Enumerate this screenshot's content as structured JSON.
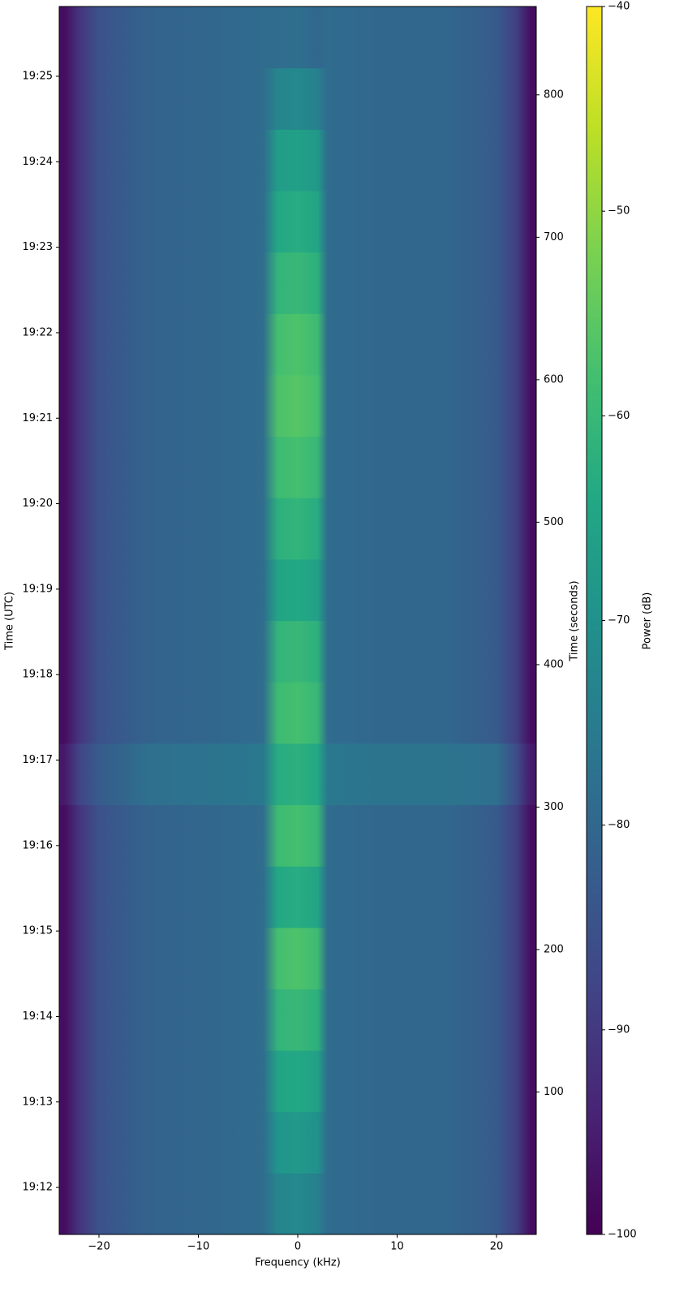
{
  "chart_data": {
    "type": "heatmap",
    "colormap": "viridis",
    "xlabel": "Frequency (kHz)",
    "ylabel": "Time (UTC)",
    "y2label": "Time (seconds)",
    "colorbar_label": "Power (dB)",
    "xlim": [
      -24,
      24
    ],
    "xticks": [
      {
        "value": -20,
        "label": "−20"
      },
      {
        "value": -10,
        "label": "−10"
      },
      0,
      10,
      20
    ],
    "ylim": [
      0,
      862
    ],
    "yticks": [
      {
        "value": 33,
        "label": "19:12"
      },
      {
        "value": 93,
        "label": "19:13"
      },
      {
        "value": 153,
        "label": "19:14"
      },
      {
        "value": 213,
        "label": "19:15"
      },
      {
        "value": 273,
        "label": "19:16"
      },
      {
        "value": 333,
        "label": "19:17"
      },
      {
        "value": 393,
        "label": "19:18"
      },
      {
        "value": 453,
        "label": "19:19"
      },
      {
        "value": 513,
        "label": "19:20"
      },
      {
        "value": 573,
        "label": "19:21"
      },
      {
        "value": 633,
        "label": "19:22"
      },
      {
        "value": 693,
        "label": "19:23"
      },
      {
        "value": 753,
        "label": "19:24"
      },
      {
        "value": 813,
        "label": "19:25"
      }
    ],
    "y2lim": [
      0,
      862
    ],
    "y2ticks": [
      100,
      200,
      300,
      400,
      500,
      600,
      700,
      800
    ],
    "clim": [
      -100,
      -40
    ],
    "cticks": [
      {
        "value": -100,
        "label": "−100"
      },
      {
        "value": -90,
        "label": "−90"
      },
      {
        "value": -80,
        "label": "−80"
      },
      {
        "value": -70,
        "label": "−70"
      },
      {
        "value": -60,
        "label": "−60"
      },
      {
        "value": -50,
        "label": "−50"
      },
      {
        "value": -40,
        "label": "−40"
      }
    ],
    "x": [
      -23.5,
      -22,
      -20,
      -15,
      -8,
      -3.5,
      -2,
      0,
      2,
      3,
      8,
      15,
      20,
      22,
      23.5
    ],
    "y": [
      21.5,
      64.6,
      107.7,
      150.8,
      193.9,
      237,
      280.1,
      323.2,
      366.3,
      409.4,
      452.5,
      495.6,
      538.7,
      581.8,
      624.9,
      668,
      711.1,
      754.2,
      797.3,
      840.4
    ],
    "z": [
      [
        -98,
        -91,
        -85,
        -81,
        -80,
        -79,
        -73,
        -72,
        -74,
        -79,
        -80,
        -80,
        -83,
        -89,
        -98
      ],
      [
        -98,
        -91,
        -85,
        -81,
        -80,
        -79,
        -69,
        -68,
        -70,
        -79,
        -80,
        -80,
        -83,
        -89,
        -98
      ],
      [
        -98,
        -91,
        -85,
        -81,
        -80,
        -79,
        -65,
        -64,
        -66,
        -79,
        -80,
        -80,
        -83,
        -89,
        -98
      ],
      [
        -98,
        -91,
        -85,
        -81,
        -80,
        -79,
        -61,
        -60,
        -62,
        -79,
        -80,
        -80,
        -83,
        -89,
        -98
      ],
      [
        -98,
        -91,
        -85,
        -81,
        -80,
        -79,
        -58,
        -57,
        -59,
        -79,
        -80,
        -80,
        -83,
        -89,
        -98
      ],
      [
        -98,
        -91,
        -85,
        -81,
        -80,
        -79,
        -64,
        -63,
        -65,
        -79,
        -80,
        -80,
        -83,
        -89,
        -98
      ],
      [
        -98,
        -91,
        -85,
        -81,
        -80,
        -79,
        -59,
        -58,
        -60,
        -79,
        -80,
        -80,
        -83,
        -89,
        -98
      ],
      [
        -96,
        -88,
        -83,
        -78,
        -77,
        -76,
        -63,
        -62,
        -64,
        -76,
        -77,
        -77,
        -78,
        -86,
        -96
      ],
      [
        -98,
        -91,
        -85,
        -81,
        -80,
        -79,
        -59,
        -58,
        -60,
        -79,
        -80,
        -80,
        -83,
        -89,
        -98
      ],
      [
        -98,
        -91,
        -85,
        -81,
        -80,
        -79,
        -61,
        -60,
        -62,
        -79,
        -80,
        -80,
        -83,
        -89,
        -98
      ],
      [
        -98,
        -91,
        -85,
        -81,
        -80,
        -79,
        -65,
        -64,
        -66,
        -79,
        -80,
        -80,
        -83,
        -89,
        -98
      ],
      [
        -98,
        -91,
        -85,
        -81,
        -80,
        -79,
        -62,
        -61,
        -63,
        -79,
        -80,
        -80,
        -83,
        -89,
        -98
      ],
      [
        -98,
        -91,
        -85,
        -81,
        -80,
        -79,
        -59,
        -58,
        -60,
        -79,
        -80,
        -80,
        -83,
        -89,
        -98
      ],
      [
        -98,
        -91,
        -85,
        -81,
        -80,
        -79,
        -57,
        -56,
        -58,
        -79,
        -80,
        -80,
        -83,
        -89,
        -98
      ],
      [
        -98,
        -91,
        -85,
        -81,
        -80,
        -79,
        -58,
        -57,
        -59,
        -79,
        -80,
        -80,
        -83,
        -89,
        -98
      ],
      [
        -98,
        -91,
        -85,
        -81,
        -80,
        -79,
        -61,
        -60,
        -62,
        -79,
        -80,
        -80,
        -83,
        -89,
        -98
      ],
      [
        -98,
        -91,
        -85,
        -81,
        -80,
        -79,
        -64,
        -63,
        -65,
        -79,
        -80,
        -80,
        -83,
        -89,
        -98
      ],
      [
        -98,
        -91,
        -85,
        -81,
        -80,
        -79,
        -67,
        -66,
        -68,
        -79,
        -80,
        -80,
        -83,
        -89,
        -98
      ],
      [
        -98,
        -91,
        -85,
        -81,
        -80,
        -79,
        -73,
        -72,
        -74,
        -79,
        -80,
        -80,
        -83,
        -89,
        -98
      ],
      [
        -98,
        -91,
        -85,
        -81,
        -80,
        -79,
        -79,
        -78,
        -80,
        -79,
        -80,
        -80,
        -83,
        -89,
        -98
      ]
    ]
  }
}
